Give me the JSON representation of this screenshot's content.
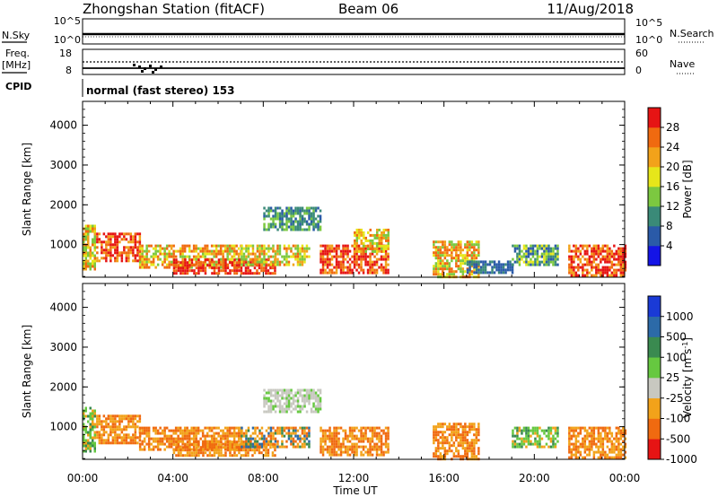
{
  "header": {
    "title": "Zhongshan Station (fitACF)",
    "beam": "Beam 06",
    "date": "11/Aug/2018"
  },
  "panels": {
    "nsky": {
      "left_label": "N.Sky",
      "right_label": "N.Search",
      "left_ticks": [
        "10^5",
        "10^0"
      ],
      "right_ticks": [
        "10^5",
        "10^0"
      ]
    },
    "freq": {
      "left_label_line1": "Freq.",
      "left_label_line2": "[MHz]",
      "right_label": "Nave",
      "left_ticks": [
        "18",
        "8"
      ],
      "right_ticks": [
        "60",
        "0"
      ]
    },
    "cpid": {
      "label": "CPID",
      "text": "normal (fast stereo) 153"
    }
  },
  "chart_data": [
    {
      "type": "heatmap",
      "quantity": "power",
      "xlabel": "",
      "ylabel": "Slant Range [km]",
      "x_ticks": [
        "00:00",
        "04:00",
        "08:00",
        "12:00",
        "16:00",
        "20:00",
        "00:00"
      ],
      "xlim_hours": [
        0,
        24
      ],
      "ylim_km": [
        180,
        4600
      ],
      "y_ticks": [
        1000,
        2000,
        3000,
        4000
      ],
      "colorbar": {
        "label": "Power [dB]",
        "tick_labels": [
          "4",
          "8",
          "12",
          "16",
          "20",
          "24",
          "28"
        ],
        "colors": [
          "#1414e6",
          "#2a5aa8",
          "#3a8a78",
          "#7cc840",
          "#e6e61a",
          "#f2a21a",
          "#f06a10",
          "#e61414"
        ]
      },
      "echo_regions": [
        {
          "t": [
            0.0,
            0.5
          ],
          "km": [
            400,
            1500
          ],
          "dominant": "green-orange"
        },
        {
          "t": [
            0.6,
            2.5
          ],
          "km": [
            600,
            1300
          ],
          "dominant": "red-orange"
        },
        {
          "t": [
            2.5,
            7.0
          ],
          "km": [
            400,
            1000
          ],
          "dominant": "orange-green"
        },
        {
          "t": [
            4.0,
            8.5
          ],
          "km": [
            250,
            650
          ],
          "dominant": "red"
        },
        {
          "t": [
            7.0,
            10.0
          ],
          "km": [
            500,
            1000
          ],
          "dominant": "green-orange"
        },
        {
          "t": [
            8.0,
            10.5
          ],
          "km": [
            1350,
            1950
          ],
          "dominant": "blue-green"
        },
        {
          "t": [
            10.5,
            13.5
          ],
          "km": [
            300,
            1000
          ],
          "dominant": "red-orange"
        },
        {
          "t": [
            12.0,
            13.5
          ],
          "km": [
            800,
            1400
          ],
          "dominant": "orange-yellow"
        },
        {
          "t": [
            15.5,
            17.5
          ],
          "km": [
            200,
            1100
          ],
          "dominant": "orange-green"
        },
        {
          "t": [
            17.0,
            19.0
          ],
          "km": [
            300,
            600
          ],
          "dominant": "blue"
        },
        {
          "t": [
            19.0,
            21.0
          ],
          "km": [
            500,
            1000
          ],
          "dominant": "green-blue"
        },
        {
          "t": [
            21.5,
            24.0
          ],
          "km": [
            200,
            1000
          ],
          "dominant": "red-orange"
        }
      ]
    },
    {
      "type": "heatmap",
      "quantity": "velocity",
      "xlabel": "Time UT",
      "ylabel": "Slant Range [km]",
      "x_ticks": [
        "00:00",
        "04:00",
        "08:00",
        "12:00",
        "16:00",
        "20:00",
        "00:00"
      ],
      "xlim_hours": [
        0,
        24
      ],
      "ylim_km": [
        180,
        4600
      ],
      "y_ticks": [
        1000,
        2000,
        3000,
        4000
      ],
      "colorbar": {
        "label": "Velocity [m s^-1]",
        "tick_labels": [
          "1000",
          "500",
          "100",
          "25",
          "-25",
          "-100",
          "-500",
          "-1000"
        ],
        "colors": [
          "#1a3ad6",
          "#2c6aa8",
          "#3a8a50",
          "#66c840",
          "#c8c8c0",
          "#f2a21a",
          "#f06a10",
          "#e61414"
        ]
      },
      "echo_regions": [
        {
          "t": [
            0.0,
            0.5
          ],
          "km": [
            400,
            1500
          ],
          "dominant": "green"
        },
        {
          "t": [
            0.6,
            2.5
          ],
          "km": [
            600,
            1300
          ],
          "dominant": "orange"
        },
        {
          "t": [
            2.5,
            7.0
          ],
          "km": [
            400,
            1000
          ],
          "dominant": "orange"
        },
        {
          "t": [
            4.0,
            8.5
          ],
          "km": [
            250,
            650
          ],
          "dominant": "orange"
        },
        {
          "t": [
            7.0,
            10.0
          ],
          "km": [
            500,
            1000
          ],
          "dominant": "orange-blue"
        },
        {
          "t": [
            8.0,
            10.5
          ],
          "km": [
            1350,
            1950
          ],
          "dominant": "grey"
        },
        {
          "t": [
            10.5,
            13.5
          ],
          "km": [
            300,
            1000
          ],
          "dominant": "orange"
        },
        {
          "t": [
            15.5,
            17.5
          ],
          "km": [
            200,
            1100
          ],
          "dominant": "orange"
        },
        {
          "t": [
            19.0,
            21.0
          ],
          "km": [
            500,
            1000
          ],
          "dominant": "green"
        },
        {
          "t": [
            21.5,
            24.0
          ],
          "km": [
            200,
            1000
          ],
          "dominant": "orange"
        }
      ]
    }
  ]
}
